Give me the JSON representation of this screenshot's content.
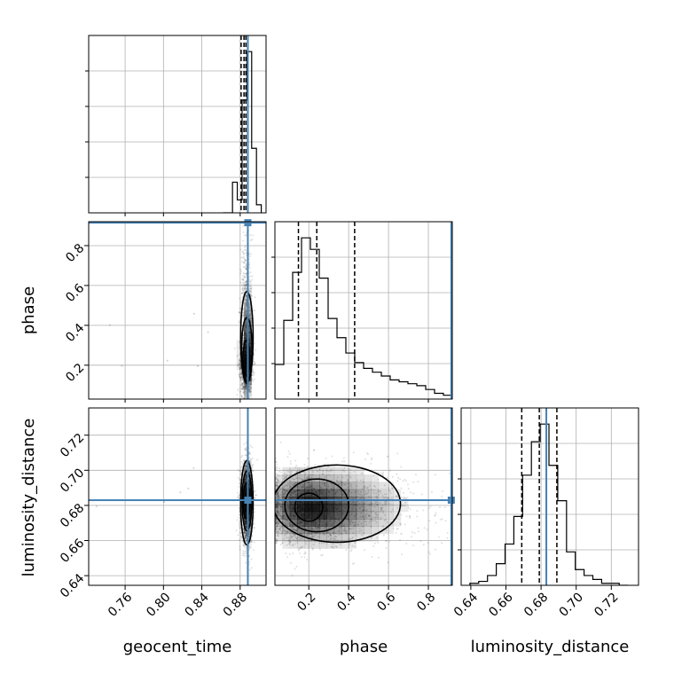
{
  "colors": {
    "truth": "#4682b4",
    "hist": "#000000",
    "grid": "#b0b0b0",
    "scatter": "#000000"
  },
  "chart_data": {
    "type": "corner",
    "parameters": [
      {
        "key": "geocent_time",
        "label": "geocent_time",
        "range": [
          0.722,
          0.907
        ],
        "ticks": [
          0.76,
          0.8,
          0.84,
          0.88
        ],
        "tick_labels": [
          "0.76",
          "0.80",
          "0.84",
          "0.88"
        ]
      },
      {
        "key": "phase",
        "label": "phase",
        "range": [
          0.03,
          0.92
        ],
        "ticks": [
          0.2,
          0.4,
          0.6,
          0.8
        ],
        "tick_labels": [
          "0.2",
          "0.4",
          "0.6",
          "0.8"
        ]
      },
      {
        "key": "luminosity_distance",
        "label": "luminosity_distance",
        "range": [
          0.6345,
          0.7355
        ],
        "ticks": [
          0.64,
          0.66,
          0.68,
          0.7,
          0.72
        ],
        "tick_labels": [
          "0.64",
          "0.66",
          "0.68",
          "0.70",
          "0.72"
        ]
      }
    ],
    "truths": {
      "geocent_time": 0.888,
      "phase": 0.915,
      "luminosity_distance": 0.683
    },
    "quantiles": {
      "geocent_time": [
        0.881,
        0.884,
        0.886
      ],
      "phase": [
        0.148,
        0.24,
        0.43
      ],
      "luminosity_distance": [
        0.669,
        0.679,
        0.689
      ]
    },
    "histograms": {
      "geocent_time": {
        "edges": [
          0.862,
          0.867,
          0.872,
          0.877,
          0.882,
          0.887,
          0.892,
          0.897,
          0.902
        ],
        "counts": [
          0,
          0,
          19,
          8,
          70,
          100,
          40,
          5
        ]
      },
      "phase": {
        "edges": [
          0.03,
          0.0523,
          0.0745,
          0.0968,
          0.119,
          0.1413,
          0.1635,
          0.1858,
          0.208,
          0.2303,
          0.2525,
          0.2748,
          0.297,
          0.3193,
          0.3415,
          0.3638,
          0.386,
          0.4083,
          0.4305,
          0.4528,
          0.475,
          0.4973,
          0.5195,
          0.5418,
          0.564,
          0.5863,
          0.6085,
          0.6308,
          0.653,
          0.6753,
          0.6975,
          0.7198,
          0.742,
          0.7643,
          0.7865,
          0.8088,
          0.831,
          0.8533,
          0.8755,
          0.8978,
          0.92
        ],
        "counts": [
          18,
          18,
          41,
          41,
          66,
          66,
          84,
          84,
          78,
          78,
          63,
          63,
          42,
          42,
          32,
          32,
          24,
          24,
          19,
          19,
          16,
          16,
          14,
          14,
          12,
          12,
          10,
          10,
          9,
          9,
          8,
          8,
          7,
          7,
          5,
          5,
          3,
          3,
          2,
          2
        ]
      },
      "luminosity_distance": {
        "edges": [
          0.6395,
          0.6445,
          0.6495,
          0.6545,
          0.6595,
          0.6645,
          0.6695,
          0.6745,
          0.6795,
          0.6845,
          0.6895,
          0.6945,
          0.6995,
          0.7045,
          0.7095,
          0.7145,
          0.7195,
          0.7245,
          0.7295
        ],
        "counts": [
          1,
          2,
          5,
          11,
          21,
          35,
          56,
          73,
          82,
          61,
          43,
          17,
          8,
          5,
          3,
          1,
          1,
          0
        ]
      }
    },
    "density_2d": [
      {
        "x": "geocent_time",
        "y": "phase",
        "center": [
          0.8865,
          0.22
        ],
        "spread": [
          0.003,
          0.08
        ],
        "skew_y": 0.25,
        "contours": [
          {
            "cx": 0.8865,
            "cy": 0.235,
            "rx": 0.0035,
            "ry": 0.09
          },
          {
            "cx": 0.887,
            "cy": 0.28,
            "rx": 0.0055,
            "ry": 0.16
          },
          {
            "cx": 0.887,
            "cy": 0.34,
            "rx": 0.0065,
            "ry": 0.23
          }
        ]
      },
      {
        "x": "geocent_time",
        "y": "luminosity_distance",
        "center": [
          0.887,
          0.682
        ],
        "spread": [
          0.003,
          0.011
        ],
        "skew_y": 0,
        "contours": [
          {
            "cx": 0.8865,
            "cy": 0.6825,
            "rx": 0.0035,
            "ry": 0.01
          },
          {
            "cx": 0.887,
            "cy": 0.6825,
            "rx": 0.005,
            "ry": 0.017
          },
          {
            "cx": 0.887,
            "cy": 0.6815,
            "rx": 0.0065,
            "ry": 0.024
          }
        ]
      },
      {
        "x": "phase",
        "y": "luminosity_distance",
        "center": [
          0.2,
          0.679
        ],
        "spread": [
          0.12,
          0.011
        ],
        "skew_y": 0,
        "contours": [
          {
            "cx": 0.2,
            "cy": 0.679,
            "rx": 0.07,
            "ry": 0.008
          },
          {
            "cx": 0.24,
            "cy": 0.68,
            "rx": 0.16,
            "ry": 0.015
          },
          {
            "cx": 0.34,
            "cy": 0.681,
            "rx": 0.32,
            "ry": 0.022
          }
        ]
      }
    ]
  }
}
